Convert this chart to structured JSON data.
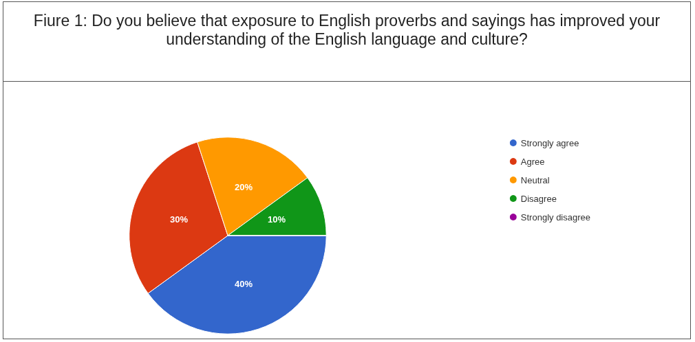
{
  "chart_data": {
    "type": "pie",
    "title": "Fiure 1: Do you believe that exposure to English proverbs and sayings has improved your understanding of the English language and culture?",
    "categories": [
      "Strongly agree",
      "Agree",
      "Neutral",
      "Disagree",
      "Strongly disagree"
    ],
    "values": [
      40,
      30,
      20,
      10,
      0
    ],
    "colors": [
      "#3366cc",
      "#dc3912",
      "#ff9900",
      "#109618",
      "#990099"
    ],
    "value_labels": [
      "40%",
      "30%",
      "20%",
      "10%",
      null
    ],
    "legend": "right"
  }
}
